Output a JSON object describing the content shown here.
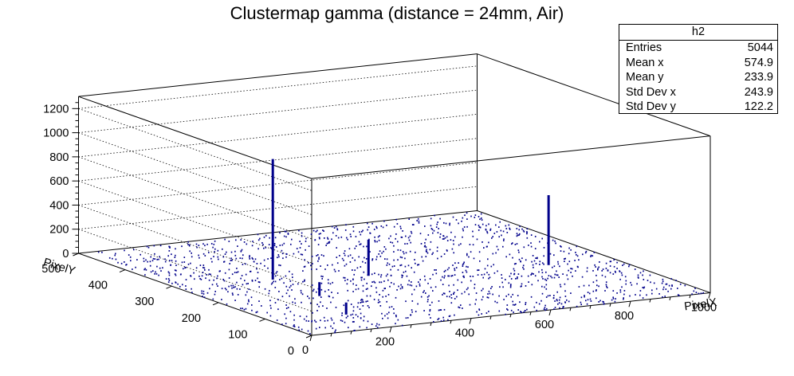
{
  "title": "Clustermap gamma (distance = 24mm, Air)",
  "stats": {
    "name": "h2",
    "rows": [
      {
        "label": "Entries",
        "value": "5044"
      },
      {
        "label": "Mean x",
        "value": "574.9"
      },
      {
        "label": "Mean y",
        "value": "233.9"
      },
      {
        "label": "Std Dev x",
        "value": "243.9"
      },
      {
        "label": "Std Dev y",
        "value": "122.2"
      }
    ]
  },
  "chart_data": {
    "type": "lego3d",
    "title": "Clustermap gamma (distance = 24mm, Air)",
    "xlabel": "PixelX",
    "ylabel": "PixelY",
    "xlim": [
      0,
      1000
    ],
    "ylim": [
      0,
      500
    ],
    "zlim": [
      0,
      1300
    ],
    "x_ticks": [
      "0",
      "200",
      "400",
      "600",
      "800",
      "1000"
    ],
    "y_ticks": [
      "0",
      "100",
      "200",
      "300",
      "400",
      "500"
    ],
    "z_ticks": [
      "0",
      "200",
      "400",
      "600",
      "800",
      "1000",
      "1200"
    ],
    "grid": true,
    "color": "#00008b",
    "background_entries": 5044,
    "peaks": [
      {
        "x": 230,
        "y": 280,
        "z": 1000
      },
      {
        "x": 435,
        "y": 250,
        "z": 300
      },
      {
        "x": 840,
        "y": 210,
        "z": 580
      },
      {
        "x": 230,
        "y": 180,
        "z": 115
      },
      {
        "x": 180,
        "y": 80,
        "z": 100
      }
    ]
  }
}
